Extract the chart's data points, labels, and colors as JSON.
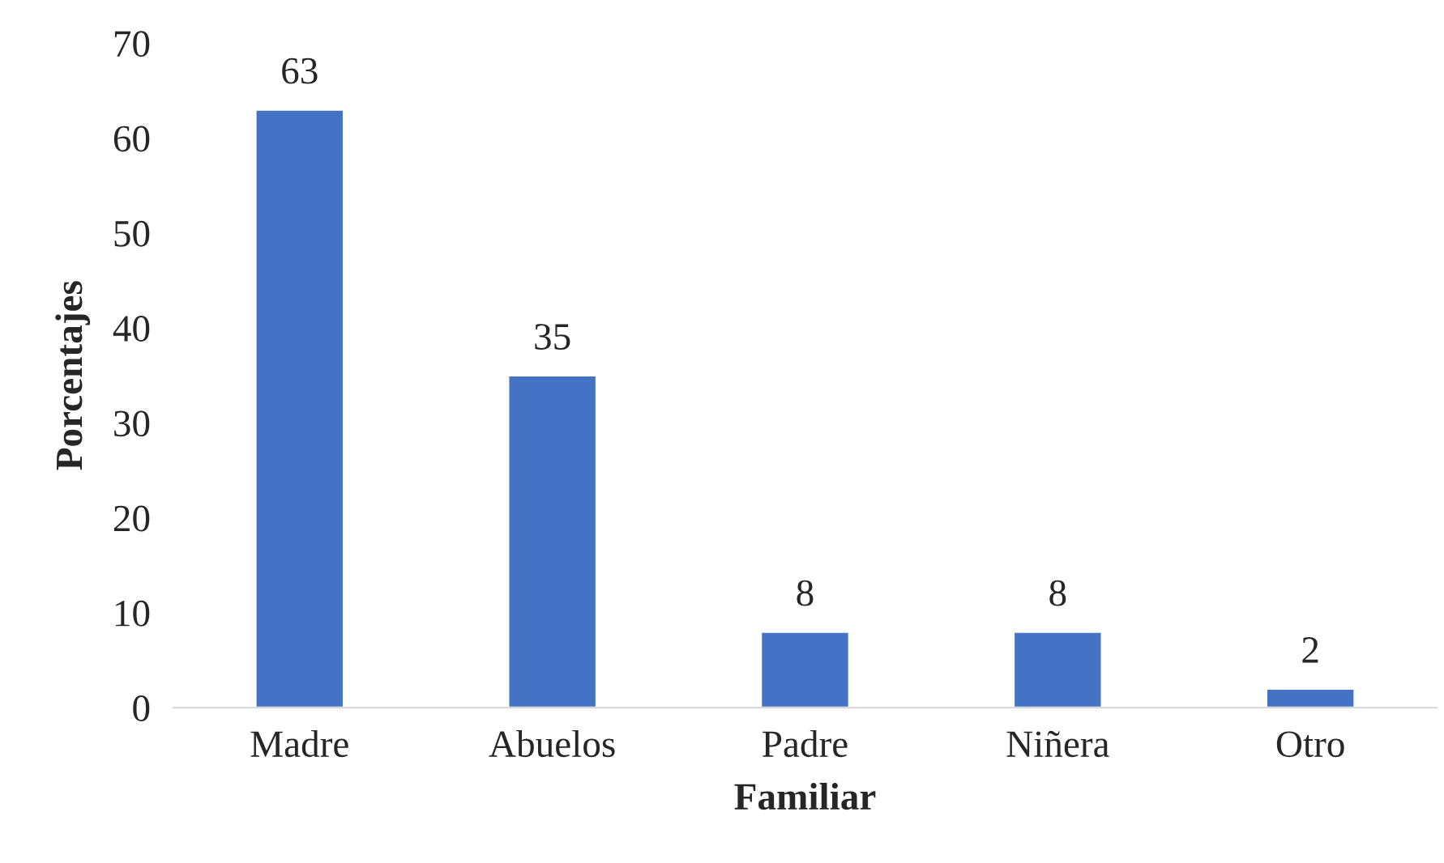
{
  "chart_data": {
    "type": "bar",
    "xlabel": "Familiar",
    "ylabel": "Porcentajes",
    "categories": [
      "Madre",
      "Abuelos",
      "Padre",
      "Niñera",
      "Otro"
    ],
    "values": [
      63,
      35,
      8,
      8,
      2
    ],
    "color": "#4472c4",
    "data_labels": true,
    "ylim": [
      0,
      70
    ],
    "yticks": [
      0,
      10,
      20,
      30,
      40,
      50,
      60,
      70
    ],
    "grid": false,
    "legend": false
  }
}
